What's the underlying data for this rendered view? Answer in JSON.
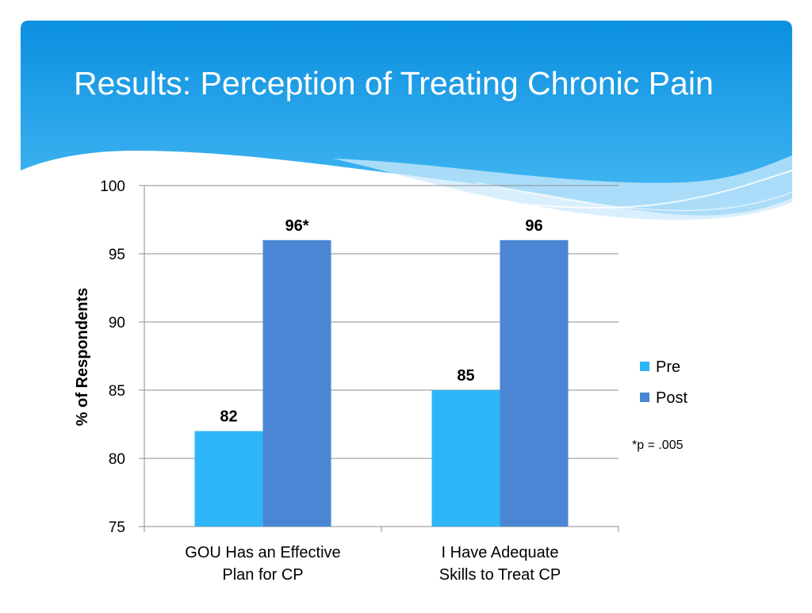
{
  "slide": {
    "title": "Results: Perception of Treating Chronic Pain",
    "colors": {
      "header_top": "#0b8fe0",
      "header_bottom": "#43b8f2",
      "wave_light": "#cfeafb"
    }
  },
  "chart_data": {
    "type": "bar",
    "title": "",
    "xlabel": "",
    "ylabel": "% of Respondents",
    "ylim": [
      75,
      100
    ],
    "yticks": [
      "75",
      "80",
      "85",
      "90",
      "95",
      "100"
    ],
    "grid": true,
    "legend_position": "right",
    "categories": [
      [
        "GOU Has an Effective",
        "Plan for CP"
      ],
      [
        "I Have Adequate",
        "Skills to Treat CP"
      ]
    ],
    "series": [
      {
        "name": "Pre",
        "color": "#2eb5f7",
        "values": [
          82,
          85
        ],
        "labels": [
          "82",
          "85"
        ]
      },
      {
        "name": "Post",
        "color": "#4a86d3",
        "values": [
          96,
          96
        ],
        "labels": [
          "96*",
          "96"
        ]
      }
    ],
    "annotation": "*p = .005"
  }
}
